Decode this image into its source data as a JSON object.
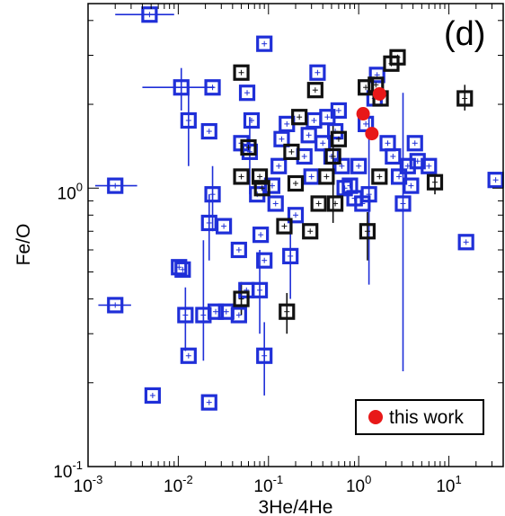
{
  "chart_data": {
    "type": "scatter",
    "panel_label": "(d)",
    "xlabel": "3He/4He",
    "ylabel": "Fe/O",
    "xscale": "log",
    "yscale": "log",
    "xlim": [
      0.001,
      40
    ],
    "ylim": [
      0.1,
      4.6
    ],
    "grid": false,
    "legend_position": "bottom-right",
    "x_ticks": [
      {
        "base": "10",
        "exp": "-3",
        "value": 0.001
      },
      {
        "base": "10",
        "exp": "-2",
        "value": 0.01
      },
      {
        "base": "10",
        "exp": "-1",
        "value": 0.1
      },
      {
        "base": "10",
        "exp": "0",
        "value": 1
      },
      {
        "base": "10",
        "exp": "1",
        "value": 10
      }
    ],
    "y_ticks": [
      {
        "base": "10",
        "exp": "-1",
        "value": 0.1
      },
      {
        "base": "10",
        "exp": "0",
        "value": 1
      }
    ],
    "colors": {
      "blue": "#1f2fd8",
      "black": "#111111",
      "red": "#e81818"
    },
    "series": [
      {
        "color_key": "blue",
        "marker": "open-square",
        "points": [
          {
            "x": 0.0048,
            "y": 4.2,
            "xerr": [
              0.002,
              0.009
            ]
          },
          {
            "x": 0.09,
            "y": 3.3
          },
          {
            "x": 0.002,
            "y": 1.02,
            "xerr": [
              0.0012,
              0.0035
            ]
          },
          {
            "x": 0.002,
            "y": 0.38,
            "xerr": [
              0.0013,
              0.003
            ]
          },
          {
            "x": 0.0052,
            "y": 0.18
          },
          {
            "x": 0.0108,
            "y": 2.3,
            "xerr": [
              0.004,
              0.025
            ],
            "yerr": [
              1.9,
              2.7
            ]
          },
          {
            "x": 0.024,
            "y": 2.3
          },
          {
            "x": 0.013,
            "y": 1.75,
            "yerr": [
              1.2,
              2.3
            ]
          },
          {
            "x": 0.022,
            "y": 1.6
          },
          {
            "x": 0.058,
            "y": 2.2
          },
          {
            "x": 0.065,
            "y": 1.75
          },
          {
            "x": 0.05,
            "y": 1.45
          },
          {
            "x": 0.062,
            "y": 1.35,
            "yerr": [
              0.95,
              1.8
            ]
          },
          {
            "x": 0.024,
            "y": 0.95,
            "yerr": [
              0.7,
              1.2
            ]
          },
          {
            "x": 0.022,
            "y": 0.75,
            "yerr": [
              0.55,
              0.95
            ]
          },
          {
            "x": 0.032,
            "y": 0.73
          },
          {
            "x": 0.0102,
            "y": 0.52
          },
          {
            "x": 0.0112,
            "y": 0.51
          },
          {
            "x": 0.012,
            "y": 0.35,
            "yerr": [
              0.26,
              0.44
            ]
          },
          {
            "x": 0.019,
            "y": 0.35,
            "yerr": [
              0.24,
              0.65
            ]
          },
          {
            "x": 0.026,
            "y": 0.36
          },
          {
            "x": 0.034,
            "y": 0.36
          },
          {
            "x": 0.047,
            "y": 0.35
          },
          {
            "x": 0.013,
            "y": 0.25
          },
          {
            "x": 0.022,
            "y": 0.17
          },
          {
            "x": 0.047,
            "y": 0.6
          },
          {
            "x": 0.057,
            "y": 0.43
          },
          {
            "x": 0.08,
            "y": 0.43,
            "yerr": [
              0.3,
              0.6
            ]
          },
          {
            "x": 0.09,
            "y": 0.25,
            "yerr": [
              0.18,
              0.33
            ]
          },
          {
            "x": 0.082,
            "y": 0.68
          },
          {
            "x": 0.09,
            "y": 0.55
          },
          {
            "x": 0.075,
            "y": 0.95
          },
          {
            "x": 0.11,
            "y": 1.02
          },
          {
            "x": 0.12,
            "y": 0.88
          },
          {
            "x": 0.13,
            "y": 1.2
          },
          {
            "x": 0.14,
            "y": 1.5
          },
          {
            "x": 0.16,
            "y": 1.7
          },
          {
            "x": 0.175,
            "y": 0.57,
            "yerr": [
              0.4,
              0.75
            ]
          },
          {
            "x": 0.2,
            "y": 0.8
          },
          {
            "x": 0.25,
            "y": 1.3
          },
          {
            "x": 0.28,
            "y": 1.55
          },
          {
            "x": 0.3,
            "y": 1.1
          },
          {
            "x": 0.32,
            "y": 1.75
          },
          {
            "x": 0.35,
            "y": 2.6
          },
          {
            "x": 0.4,
            "y": 1.45
          },
          {
            "x": 0.45,
            "y": 1.8
          },
          {
            "x": 0.5,
            "y": 1.3
          },
          {
            "x": 0.55,
            "y": 1.6
          },
          {
            "x": 0.6,
            "y": 1.9
          },
          {
            "x": 0.65,
            "y": 1.2
          },
          {
            "x": 0.7,
            "y": 1.0
          },
          {
            "x": 0.8,
            "y": 1.02
          },
          {
            "x": 0.9,
            "y": 0.92
          },
          {
            "x": 1.0,
            "y": 1.2
          },
          {
            "x": 1.1,
            "y": 0.88
          },
          {
            "x": 1.2,
            "y": 1.7
          },
          {
            "x": 1.3,
            "y": 0.95,
            "yerr": [
              0.45,
              1.8
            ]
          },
          {
            "x": 1.5,
            "y": 2.1
          },
          {
            "x": 1.6,
            "y": 2.55
          },
          {
            "x": 2.1,
            "y": 1.45
          },
          {
            "x": 2.4,
            "y": 1.3
          },
          {
            "x": 2.8,
            "y": 1.1
          },
          {
            "x": 3.1,
            "y": 0.88,
            "yerr": [
              0.22,
              2.2
            ]
          },
          {
            "x": 3.5,
            "y": 1.2
          },
          {
            "x": 3.8,
            "y": 1.02
          },
          {
            "x": 4.2,
            "y": 1.45
          },
          {
            "x": 4.5,
            "y": 1.25
          },
          {
            "x": 6.0,
            "y": 1.2
          },
          {
            "x": 15.5,
            "y": 0.64
          },
          {
            "x": 33.0,
            "y": 1.07
          }
        ]
      },
      {
        "color_key": "black",
        "marker": "open-square",
        "points": [
          {
            "x": 0.05,
            "y": 2.6
          },
          {
            "x": 0.05,
            "y": 0.4,
            "yerr": [
              0.35,
              0.46
            ]
          },
          {
            "x": 0.05,
            "y": 1.1
          },
          {
            "x": 0.06,
            "y": 1.4
          },
          {
            "x": 0.08,
            "y": 1.1
          },
          {
            "x": 0.085,
            "y": 1.0
          },
          {
            "x": 0.16,
            "y": 0.36,
            "yerr": [
              0.3,
              0.42
            ]
          },
          {
            "x": 0.15,
            "y": 0.73
          },
          {
            "x": 0.18,
            "y": 1.35
          },
          {
            "x": 0.2,
            "y": 1.04
          },
          {
            "x": 0.22,
            "y": 1.8
          },
          {
            "x": 0.29,
            "y": 0.7
          },
          {
            "x": 0.33,
            "y": 2.25
          },
          {
            "x": 0.36,
            "y": 0.88
          },
          {
            "x": 0.44,
            "y": 1.1
          },
          {
            "x": 0.52,
            "y": 1.3,
            "yerr": [
              0.75,
              1.7
            ]
          },
          {
            "x": 0.55,
            "y": 0.88
          },
          {
            "x": 0.6,
            "y": 1.5
          },
          {
            "x": 1.2,
            "y": 2.3
          },
          {
            "x": 1.25,
            "y": 0.7,
            "yerr": [
              0.55,
              0.82
            ]
          },
          {
            "x": 1.55,
            "y": 2.35
          },
          {
            "x": 1.7,
            "y": 1.1
          },
          {
            "x": 1.75,
            "y": 2.1
          },
          {
            "x": 2.3,
            "y": 2.8
          },
          {
            "x": 2.7,
            "y": 2.95
          },
          {
            "x": 7.0,
            "y": 1.05,
            "yerr": [
              0.95,
              1.15
            ]
          },
          {
            "x": 15.0,
            "y": 2.1,
            "yerr": [
              1.9,
              2.35
            ]
          }
        ]
      },
      {
        "name": "this work",
        "color_key": "red",
        "marker": "filled-circle",
        "points": [
          {
            "x": 1.12,
            "y": 1.85
          },
          {
            "x": 1.4,
            "y": 1.57
          },
          {
            "x": 1.7,
            "y": 2.18
          }
        ]
      }
    ]
  }
}
